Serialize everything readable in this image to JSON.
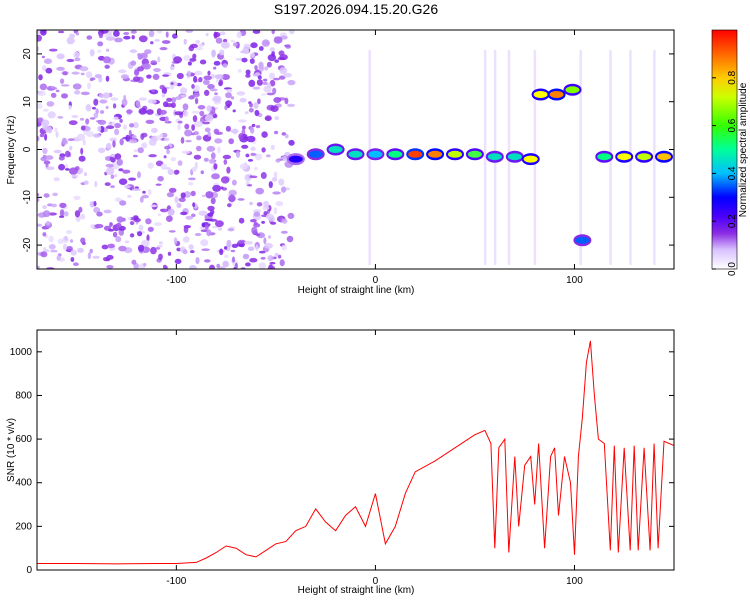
{
  "title": "S197.2026.094.15.20.G26",
  "chart_data": [
    {
      "type": "heatmap",
      "xlabel": "Height of straight line (km)",
      "ylabel": "Frequency (Hz)",
      "xlim": [
        -170,
        150
      ],
      "ylim": [
        -25,
        25
      ],
      "xticks": [
        -100,
        0,
        100
      ],
      "yticks": [
        -20,
        -10,
        0,
        10,
        20
      ],
      "colorbar": {
        "label": "Normalized spectral amplitude",
        "range": [
          0.0,
          1.0
        ],
        "ticks": [
          0.0,
          0.2,
          0.4,
          0.6,
          0.8
        ],
        "colors": [
          "#ffffff",
          "#d9c2ff",
          "#8a2be2",
          "#4b00ff",
          "#0000ff",
          "#00bfff",
          "#00ff80",
          "#7fff00",
          "#ffff00",
          "#ff8000",
          "#ff0000"
        ]
      },
      "ridge": [
        {
          "x": -40,
          "freq": -2,
          "amp": 0.35
        },
        {
          "x": -30,
          "freq": -1,
          "amp": 0.45
        },
        {
          "x": -20,
          "freq": 0,
          "amp": 0.55
        },
        {
          "x": -10,
          "freq": -1,
          "amp": 0.55
        },
        {
          "x": 0,
          "freq": -1,
          "amp": 0.5
        },
        {
          "x": 10,
          "freq": -1,
          "amp": 0.6
        },
        {
          "x": 20,
          "freq": -1,
          "amp": 0.95
        },
        {
          "x": 30,
          "freq": -1,
          "amp": 0.9
        },
        {
          "x": 40,
          "freq": -1,
          "amp": 0.75
        },
        {
          "x": 50,
          "freq": -1,
          "amp": 0.65
        },
        {
          "x": 60,
          "freq": -1.5,
          "amp": 0.55
        },
        {
          "x": 70,
          "freq": -1.5,
          "amp": 0.55
        },
        {
          "x": 78,
          "freq": -2,
          "amp": 0.8
        },
        {
          "x": 83,
          "freq": 11.5,
          "amp": 0.8
        },
        {
          "x": 91,
          "freq": 11.5,
          "amp": 0.9
        },
        {
          "x": 99,
          "freq": 12.5,
          "amp": 0.7
        },
        {
          "x": 104,
          "freq": -19,
          "amp": 0.45
        },
        {
          "x": 115,
          "freq": -1.5,
          "amp": 0.6
        },
        {
          "x": 125,
          "freq": -1.5,
          "amp": 0.8
        },
        {
          "x": 135,
          "freq": -1.5,
          "amp": 0.75
        },
        {
          "x": 145,
          "freq": -1.5,
          "amp": 0.85
        }
      ]
    },
    {
      "type": "line",
      "xlabel": "Height of straight line (km)",
      "ylabel": "SNR (10 * v/v)",
      "xlim": [
        -170,
        150
      ],
      "ylim": [
        0,
        1100
      ],
      "xticks": [
        -100,
        0,
        100
      ],
      "yticks": [
        0,
        200,
        400,
        600,
        800,
        1000
      ],
      "color": "#ff0000",
      "x": [
        -170,
        -150,
        -130,
        -110,
        -100,
        -90,
        -85,
        -80,
        -75,
        -70,
        -65,
        -60,
        -55,
        -50,
        -45,
        -40,
        -35,
        -30,
        -25,
        -20,
        -15,
        -10,
        -5,
        0,
        5,
        10,
        15,
        20,
        30,
        40,
        50,
        55,
        58,
        60,
        62,
        65,
        67,
        70,
        72,
        75,
        78,
        80,
        82,
        85,
        88,
        90,
        92,
        95,
        98,
        100,
        102,
        104,
        106,
        108,
        110,
        112,
        115,
        118,
        120,
        122,
        125,
        128,
        130,
        132,
        135,
        138,
        140,
        142,
        145,
        150
      ],
      "y": [
        30,
        30,
        28,
        30,
        30,
        35,
        55,
        80,
        110,
        100,
        70,
        60,
        90,
        120,
        130,
        180,
        200,
        280,
        220,
        180,
        250,
        290,
        200,
        350,
        120,
        200,
        350,
        450,
        500,
        560,
        620,
        640,
        580,
        100,
        560,
        600,
        80,
        520,
        200,
        480,
        520,
        300,
        580,
        100,
        520,
        560,
        250,
        520,
        400,
        70,
        520,
        700,
        950,
        1050,
        800,
        600,
        580,
        90,
        570,
        80,
        560,
        90,
        570,
        90,
        560,
        90,
        580,
        100,
        590,
        570
      ]
    }
  ]
}
